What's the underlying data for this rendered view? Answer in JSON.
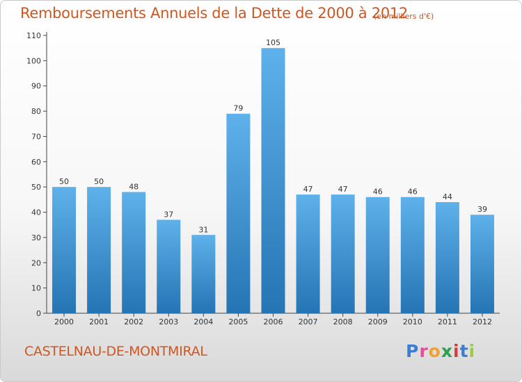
{
  "title": "Remboursements Annuels de la Dette de 2000 à 2012",
  "unit_note": "(en milliers d'€)",
  "place": "CASTELNAU-DE-MONTMIRAL",
  "logo": {
    "text": "Proxiti",
    "letter_colors": [
      "#3a7fd5",
      "#e84c9a",
      "#f3a12c",
      "#2f9f4d",
      "#d93b3b",
      "#3a7fd5",
      "#9ccc3a"
    ]
  },
  "colors": {
    "title": "#d0561f",
    "bar_top": "#5eb1ea",
    "bar_bottom": "#2574b4"
  },
  "chart_data": {
    "type": "bar",
    "title": "Remboursements Annuels de la Dette de 2000 à 2012",
    "xlabel": "",
    "ylabel": "",
    "categories": [
      "2000",
      "2001",
      "2002",
      "2003",
      "2004",
      "2005",
      "2006",
      "2007",
      "2008",
      "2009",
      "2010",
      "2011",
      "2012"
    ],
    "values": [
      50,
      50,
      48,
      37,
      31,
      79,
      105,
      47,
      47,
      46,
      46,
      44,
      39
    ],
    "ylim": [
      0,
      110
    ],
    "yticks": [
      0,
      10,
      20,
      30,
      40,
      50,
      60,
      70,
      80,
      90,
      100,
      110
    ],
    "grid": false,
    "legend": "none"
  }
}
